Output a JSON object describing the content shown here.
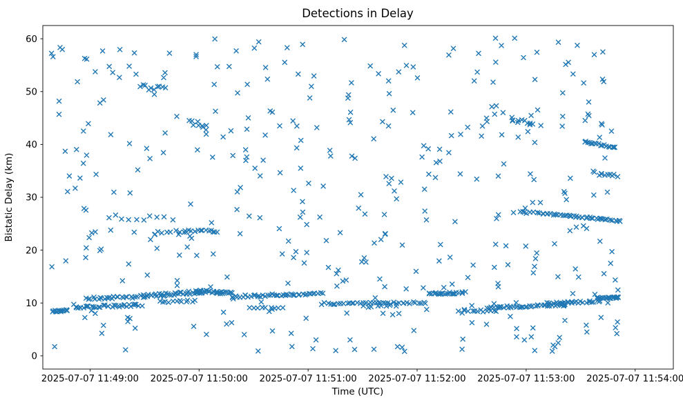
{
  "figure": {
    "title": "Detections in Delay",
    "xlabel": "Time (UTC)",
    "ylabel": "Bistatic Delay (km)"
  },
  "chart_data": {
    "type": "scatter",
    "title": "Detections in Delay",
    "xlabel": "Time (UTC)",
    "ylabel": "Bistatic Delay (km)",
    "marker": "x",
    "marker_color": "#1f77b4",
    "grid": false,
    "legend": null,
    "x_axis": {
      "unit": "seconds after 2025-07-07 11:49:00 UTC",
      "lim": [
        -26,
        321
      ],
      "ticks": [
        {
          "value": 0,
          "label": "2025-07-07 11:49:00"
        },
        {
          "value": 60,
          "label": "2025-07-07 11:50:00"
        },
        {
          "value": 120,
          "label": "2025-07-07 11:51:00"
        },
        {
          "value": 180,
          "label": "2025-07-07 11:52:00"
        },
        {
          "value": 240,
          "label": "2025-07-07 11:53:00"
        },
        {
          "value": 300,
          "label": "2025-07-07 11:54:00"
        }
      ]
    },
    "y_axis": {
      "lim": [
        -2.5,
        62.5
      ],
      "ticks": [
        0,
        10,
        20,
        30,
        40,
        50,
        60
      ]
    },
    "tracks": [
      {
        "x": [
          -21,
          -12
        ],
        "y": [
          8.4,
          8.6
        ],
        "count": 16,
        "jitter": 0.18
      },
      {
        "x": [
          -8,
          28
        ],
        "y": [
          9.2,
          9.6
        ],
        "count": 34,
        "jitter": 0.22
      },
      {
        "x": [
          -2,
          30
        ],
        "y": [
          10.9,
          11.2
        ],
        "count": 26,
        "jitter": 0.25
      },
      {
        "x": [
          30,
          62
        ],
        "y": [
          11.3,
          12.1
        ],
        "count": 40,
        "jitter": 0.3
      },
      {
        "x": [
          38,
          58
        ],
        "y": [
          10.2,
          10.4
        ],
        "count": 12,
        "jitter": 0.2
      },
      {
        "x": [
          58,
          78
        ],
        "y": [
          12.3,
          11.8
        ],
        "count": 30,
        "jitter": 0.22
      },
      {
        "x": [
          78,
          112
        ],
        "y": [
          11.2,
          11.6
        ],
        "count": 30,
        "jitter": 0.22
      },
      {
        "x": [
          112,
          128
        ],
        "y": [
          11.6,
          11.8
        ],
        "count": 14,
        "jitter": 0.18
      },
      {
        "x": [
          88,
          106
        ],
        "y": [
          8.9,
          9.1
        ],
        "count": 9,
        "jitter": 0.25
      },
      {
        "x": [
          128,
          185
        ],
        "y": [
          9.9,
          10.05
        ],
        "count": 40,
        "jitter": 0.2
      },
      {
        "x": [
          150,
          168
        ],
        "y": [
          9.3,
          9.4
        ],
        "count": 8,
        "jitter": 0.2
      },
      {
        "x": [
          186,
          206
        ],
        "y": [
          11.75,
          11.95
        ],
        "count": 22,
        "jitter": 0.18
      },
      {
        "x": [
          203,
          224
        ],
        "y": [
          8.3,
          8.6
        ],
        "count": 13,
        "jitter": 0.25
      },
      {
        "x": [
          218,
          262
        ],
        "y": [
          9.15,
          9.6
        ],
        "count": 42,
        "jitter": 0.2
      },
      {
        "x": [
          252,
          281
        ],
        "y": [
          9.9,
          10.35
        ],
        "count": 26,
        "jitter": 0.18
      },
      {
        "x": [
          279,
          291
        ],
        "y": [
          10.95,
          11.05
        ],
        "count": 22,
        "jitter": 0.15
      },
      {
        "x": [
          248,
          292
        ],
        "y": [
          27.0,
          25.5
        ],
        "count": 42,
        "jitter": 0.15
      },
      {
        "x": [
          236,
          247
        ],
        "y": [
          27.2,
          27.05
        ],
        "count": 8,
        "jitter": 0.2
      },
      {
        "x": [
          52,
          70
        ],
        "y": [
          23.6,
          23.6
        ],
        "count": 15,
        "jitter": 0.2
      },
      {
        "x": [
          35,
          52
        ],
        "y": [
          23.0,
          23.4
        ],
        "count": 8,
        "jitter": 0.5
      },
      {
        "x": [
          272,
          289
        ],
        "y": [
          40.4,
          39.5
        ],
        "count": 18,
        "jitter": 0.2
      },
      {
        "x": [
          277,
          290
        ],
        "y": [
          34.6,
          34.2
        ],
        "count": 11,
        "jitter": 0.35
      },
      {
        "x": [
          232,
          244
        ],
        "y": [
          44.8,
          43.9
        ],
        "count": 10,
        "jitter": 0.45
      },
      {
        "x": [
          10,
          45
        ],
        "y": [
          26.3,
          26.1
        ],
        "count": 10,
        "jitter": 0.5
      },
      {
        "x": [
          55,
          64
        ],
        "y": [
          44.0,
          43.6
        ],
        "count": 8,
        "jitter": 0.6
      },
      {
        "x": [
          27,
          41
        ],
        "y": [
          50.8,
          50.2
        ],
        "count": 9,
        "jitter": 0.7
      }
    ],
    "clutter": {
      "count": 400,
      "x_range": [
        -22,
        292
      ],
      "y_range": [
        0.6,
        60.1
      ],
      "seed": 20250707
    }
  }
}
